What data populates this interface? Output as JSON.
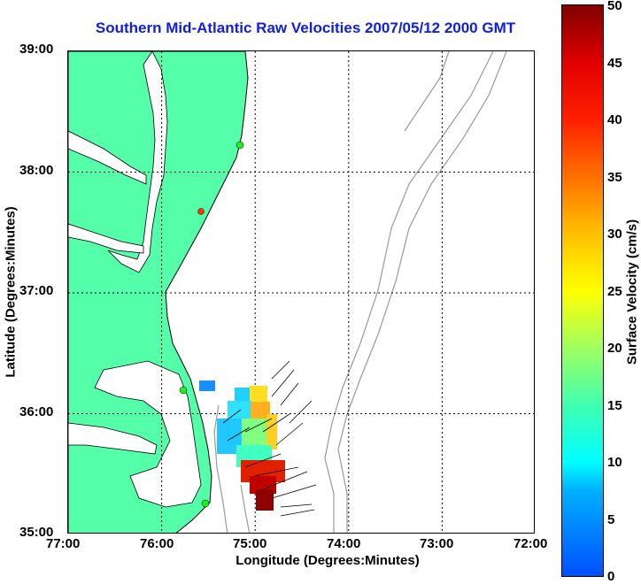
{
  "title": "Southern Mid-Atlantic Raw Velocities 2007/05/12 2000 GMT",
  "xaxis": {
    "label": "Longitude (Degrees:Minutes)",
    "ticks": [
      "77:00",
      "76:00",
      "75:00",
      "74:00",
      "73:00",
      "72:00"
    ]
  },
  "yaxis": {
    "label": "Latitude (Degrees:Minutes)",
    "ticks": [
      "39:00",
      "38:00",
      "37:00",
      "36:00",
      "35:00"
    ]
  },
  "colorbar": {
    "label": "Surface Velocity (cm/s)",
    "ticks": [
      "50",
      "45",
      "40",
      "35",
      "30",
      "25",
      "20",
      "15",
      "10",
      "5",
      "0"
    ],
    "range": [
      0,
      50
    ],
    "colors": [
      "#0050ff",
      "#00ffff",
      "#40ffb0",
      "#ffff00",
      "#ff7000",
      "#e00000",
      "#800000"
    ]
  },
  "colors": {
    "land": "#55ffaa",
    "coast": "#000000",
    "bathymetry": "#999999",
    "grid": "#000000",
    "title": "#1020e0",
    "station_active": "#22ee22",
    "station_inactive": "#ff3300"
  },
  "map": {
    "lon_range": [
      -77,
      -72
    ],
    "lat_range": [
      35,
      39
    ],
    "grid": true,
    "stations": [
      {
        "lon": -75.17,
        "lat": 38.23,
        "status": "active"
      },
      {
        "lon": -75.55,
        "lat": 37.68,
        "status": "inactive"
      },
      {
        "lon": -75.78,
        "lat": 36.18,
        "status": "active"
      },
      {
        "lon": -75.52,
        "lat": 35.25,
        "status": "active"
      }
    ]
  }
}
